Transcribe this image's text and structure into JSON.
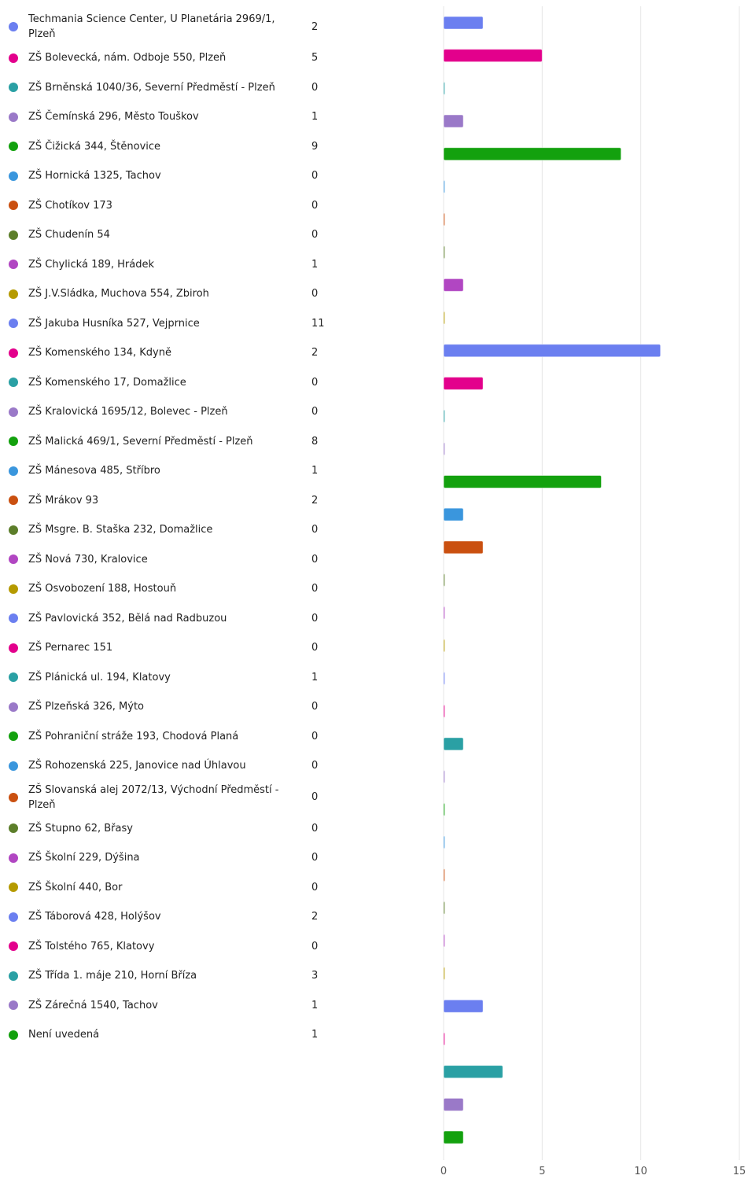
{
  "chart_data": {
    "type": "bar",
    "categories": [
      "Techmania Science Center, U Planetária 2969/1, Plzeň",
      "ZŠ Bolevecká, nám. Odboje 550, Plzeň",
      "ZŠ Brněnská 1040/36, Severní Předměstí - Plzeň",
      "ZŠ Čemínská 296, Město Touškov",
      "ZŠ Čižická 344, Štěnovice",
      "ZŠ Hornická 1325, Tachov",
      "ZŠ Chotíkov 173",
      "ZŠ Chudenín 54",
      "ZŠ Chylická 189, Hrádek",
      "ZŠ J.V.Sládka, Muchova 554, Zbiroh",
      "ZŠ Jakuba Husníka 527, Vejprnice",
      "ZŠ Komenského 134, Kdyně",
      "ZŠ Komenského 17, Domažlice",
      "ZŠ Kralovická 1695/12, Bolevec - Plzeň",
      "ZŠ Malická 469/1, Severní Předměstí - Plzeň",
      "ZŠ Mánesova 485, Stříbro",
      "ZŠ Mrákov 93",
      "ZŠ Msgre. B. Staška 232, Domažlice",
      "ZŠ Nová 730, Kralovice",
      "ZŠ Osvobození 188, Hostouň",
      "ZŠ Pavlovická 352, Bělá nad Radbuzou",
      "ZŠ Pernarec 151",
      "ZŠ Plánická ul. 194, Klatovy",
      "ZŠ Plzeňská 326, Mýto",
      "ZŠ Pohraniční stráže 193, Chodová Planá",
      "ZŠ Rohozenská 225, Janovice nad Úhlavou",
      "ZŠ Slovanská alej 2072/13, Východní Předměstí - Plzeň",
      "ZŠ Stupno 62, Břasy",
      "ZŠ Školní 229, Dýšina",
      "ZŠ Školní 440, Bor",
      "ZŠ Táborová 428, Holýšov",
      "ZŠ Tolstého 765, Klatovy",
      "ZŠ Třída 1. máje 210, Horní Bříza",
      "ZŠ Zárečná 1540, Tachov",
      "Není uvedená"
    ],
    "values": [
      2,
      5,
      0,
      1,
      9,
      0,
      0,
      0,
      1,
      0,
      11,
      2,
      0,
      0,
      8,
      1,
      2,
      0,
      0,
      0,
      0,
      0,
      1,
      0,
      0,
      0,
      0,
      0,
      0,
      0,
      2,
      0,
      3,
      1,
      1
    ],
    "colors": [
      "#6b7ff0",
      "#e3008c",
      "#2aa0a4",
      "#9a79c8",
      "#13a10e",
      "#3a96dd",
      "#ca5010",
      "#5c7e2a",
      "#b146c2",
      "#b59a00"
    ],
    "xlim": [
      0,
      15
    ],
    "xticks": [
      0,
      5,
      10,
      15
    ],
    "grid": true
  }
}
